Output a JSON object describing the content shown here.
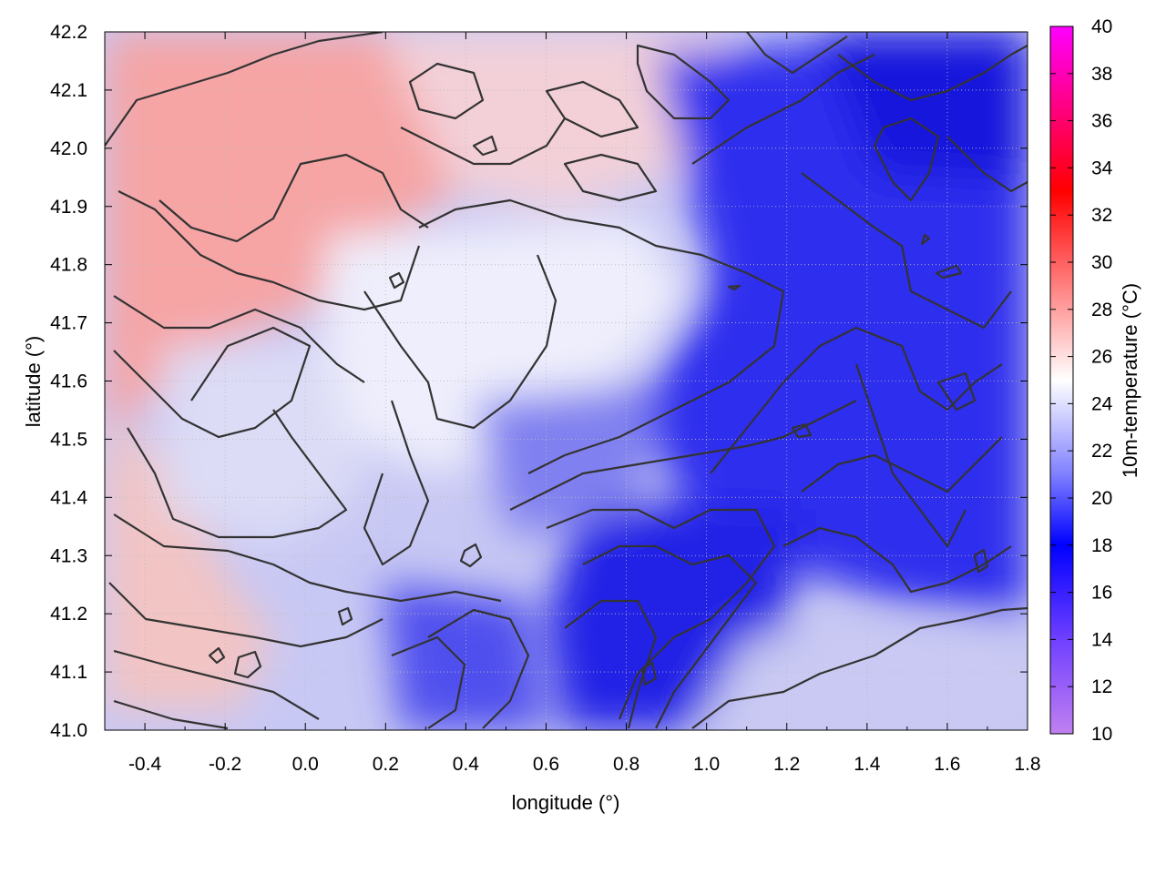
{
  "chart_data": {
    "type": "heatmap",
    "title": "",
    "xlabel": "longitude (°)",
    "ylabel": "latitude (°)",
    "colorbar_label": "10m-temperature (°C)",
    "xlim": [
      -0.5,
      1.8
    ],
    "ylim": [
      41.0,
      42.2
    ],
    "x_ticks": [
      -0.4,
      -0.2,
      0.0,
      0.2,
      0.4,
      0.6,
      0.8,
      1.0,
      1.2,
      1.4,
      1.6,
      1.8
    ],
    "x_tick_labels": [
      "-0.4",
      "-0.2",
      "0.0",
      "0.2",
      "0.4",
      "0.6",
      "0.8",
      "1.0",
      "1.2",
      "1.4",
      "1.6",
      "1.8"
    ],
    "y_ticks": [
      41.0,
      41.1,
      41.2,
      41.3,
      41.4,
      41.5,
      41.6,
      41.7,
      41.8,
      41.9,
      42.0,
      42.1,
      42.2
    ],
    "y_tick_labels": [
      "41.0",
      "41.1",
      "41.2",
      "41.3",
      "41.4",
      "41.5",
      "41.6",
      "41.7",
      "41.8",
      "41.9",
      "42.0",
      "42.1",
      "42.2"
    ],
    "colorbar_range": [
      10,
      40
    ],
    "colorbar_ticks": [
      10,
      12,
      14,
      16,
      18,
      20,
      22,
      24,
      26,
      28,
      30,
      32,
      34,
      36,
      38,
      40
    ],
    "colorbar_tick_labels": [
      "10",
      "12",
      "14",
      "16",
      "18",
      "20",
      "22",
      "24",
      "26",
      "28",
      "30",
      "32",
      "34",
      "36",
      "38",
      "40"
    ],
    "colormap": [
      {
        "value": 10,
        "color": "#c080f0"
      },
      {
        "value": 14,
        "color": "#7040ff"
      },
      {
        "value": 18,
        "color": "#0000ff"
      },
      {
        "value": 21,
        "color": "#8080ff"
      },
      {
        "value": 25,
        "color": "#ffffff"
      },
      {
        "value": 29,
        "color": "#ff8080"
      },
      {
        "value": 33,
        "color": "#ff0000"
      },
      {
        "value": 40,
        "color": "#ff00ff"
      }
    ],
    "grid": true,
    "contours": true,
    "approx_temperature_field": [
      {
        "region": "northwest",
        "value": 27
      },
      {
        "region": "west coast",
        "value": 26
      },
      {
        "region": "central",
        "value": 23
      },
      {
        "region": "southeast",
        "value": 18
      },
      {
        "region": "northeast",
        "value": 17
      },
      {
        "region": "south lowlands",
        "value": 23
      }
    ]
  }
}
